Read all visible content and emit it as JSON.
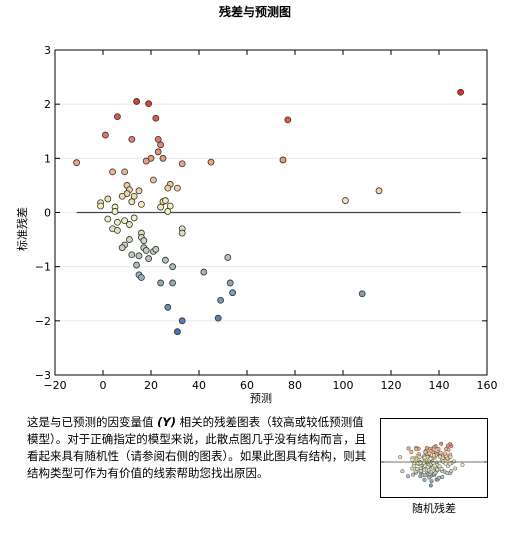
{
  "chart_data": {
    "type": "scatter",
    "title": "残差与预测图",
    "xlabel": "预测",
    "ylabel": "标准残差",
    "xlim": [
      -20,
      160
    ],
    "ylim": [
      -3,
      3
    ],
    "x_ticks": [
      -20,
      0,
      20,
      40,
      60,
      80,
      100,
      120,
      140,
      160
    ],
    "y_ticks": [
      -3,
      -2,
      -1,
      0,
      1,
      2,
      3
    ],
    "reference_line": {
      "y": 0,
      "x_from": -11,
      "x_to": 149
    },
    "points": [
      {
        "x": -11,
        "y": 0.92
      },
      {
        "x": 1,
        "y": 1.43
      },
      {
        "x": 6,
        "y": 1.77
      },
      {
        "x": 14,
        "y": 2.05
      },
      {
        "x": 19,
        "y": 2.01
      },
      {
        "x": 22,
        "y": 1.74
      },
      {
        "x": 77,
        "y": 1.71
      },
      {
        "x": 149,
        "y": 2.22
      },
      {
        "x": 12,
        "y": 1.35
      },
      {
        "x": 23,
        "y": 1.35
      },
      {
        "x": 24,
        "y": 1.25
      },
      {
        "x": 23,
        "y": 1.12
      },
      {
        "x": 25,
        "y": 1.0
      },
      {
        "x": 20,
        "y": 1.0
      },
      {
        "x": 18,
        "y": 0.95
      },
      {
        "x": 33,
        "y": 0.9
      },
      {
        "x": 45,
        "y": 0.93
      },
      {
        "x": 75,
        "y": 0.97
      },
      {
        "x": 4,
        "y": 0.75
      },
      {
        "x": 9,
        "y": 0.75
      },
      {
        "x": 21,
        "y": 0.6
      },
      {
        "x": 28,
        "y": 0.52
      },
      {
        "x": 27,
        "y": 0.45
      },
      {
        "x": 31,
        "y": 0.45
      },
      {
        "x": 10,
        "y": 0.5
      },
      {
        "x": 11,
        "y": 0.42
      },
      {
        "x": 10,
        "y": 0.35
      },
      {
        "x": 15,
        "y": 0.4
      },
      {
        "x": 13,
        "y": 0.3
      },
      {
        "x": 8,
        "y": 0.3
      },
      {
        "x": 2,
        "y": 0.25
      },
      {
        "x": 12,
        "y": 0.2
      },
      {
        "x": 16,
        "y": 0.15
      },
      {
        "x": 25,
        "y": 0.2
      },
      {
        "x": 26,
        "y": 0.22
      },
      {
        "x": 24,
        "y": 0.1
      },
      {
        "x": 28,
        "y": 0.12
      },
      {
        "x": 5,
        "y": 0.1
      },
      {
        "x": -1,
        "y": 0.18
      },
      {
        "x": -1,
        "y": 0.12
      },
      {
        "x": 101,
        "y": 0.22
      },
      {
        "x": 115,
        "y": 0.4
      },
      {
        "x": 27,
        "y": 0.02
      },
      {
        "x": 5,
        "y": 0.02
      },
      {
        "x": 2,
        "y": -0.12
      },
      {
        "x": 6,
        "y": -0.18
      },
      {
        "x": 9,
        "y": -0.15
      },
      {
        "x": 13,
        "y": -0.1
      },
      {
        "x": 11,
        "y": -0.22
      },
      {
        "x": 4,
        "y": -0.3
      },
      {
        "x": 6,
        "y": -0.33
      },
      {
        "x": 33,
        "y": -0.3
      },
      {
        "x": 33,
        "y": -0.38
      },
      {
        "x": 16,
        "y": -0.38
      },
      {
        "x": 16,
        "y": -0.46
      },
      {
        "x": 11,
        "y": -0.5
      },
      {
        "x": 17,
        "y": -0.52
      },
      {
        "x": 9,
        "y": -0.6
      },
      {
        "x": 8,
        "y": -0.65
      },
      {
        "x": 17,
        "y": -0.65
      },
      {
        "x": 18,
        "y": -0.7
      },
      {
        "x": 21,
        "y": -0.72
      },
      {
        "x": 22,
        "y": -0.68
      },
      {
        "x": 12,
        "y": -0.78
      },
      {
        "x": 15,
        "y": -0.8
      },
      {
        "x": 19,
        "y": -0.85
      },
      {
        "x": 26,
        "y": -0.88
      },
      {
        "x": 52,
        "y": -0.83
      },
      {
        "x": 29,
        "y": -1.0
      },
      {
        "x": 14,
        "y": -0.97
      },
      {
        "x": 42,
        "y": -1.1
      },
      {
        "x": 15,
        "y": -1.15
      },
      {
        "x": 16,
        "y": -1.2
      },
      {
        "x": 24,
        "y": -1.3
      },
      {
        "x": 29,
        "y": -1.3
      },
      {
        "x": 53,
        "y": -1.3
      },
      {
        "x": 54,
        "y": -1.48
      },
      {
        "x": 108,
        "y": -1.5
      },
      {
        "x": 49,
        "y": -1.62
      },
      {
        "x": 27,
        "y": -1.75
      },
      {
        "x": 48,
        "y": -1.95
      },
      {
        "x": 33,
        "y": -2.0
      },
      {
        "x": 31,
        "y": -2.2
      }
    ]
  },
  "description": {
    "part1": "这是与已预测的因变量值 ",
    "y_var": "(Y)",
    "part2": " 相关的残差图表（较高或较低预测值模型）。对于正确指定的模型来说，此散点图几乎没有结构而言，且看起来具有随机性（请参阅右侧的图表）。如果此图具有结构，则其结构类型可作为有价值的线索帮助您找出原因。"
  },
  "inset": {
    "label": "随机残差",
    "note": "random residual cloud example"
  },
  "colors": {
    "high": "#d73027",
    "mid": "#f7f7c0",
    "low": "#4575b4",
    "axis": "#000000",
    "grid": "#e6e6e6",
    "refline": "#444444"
  }
}
